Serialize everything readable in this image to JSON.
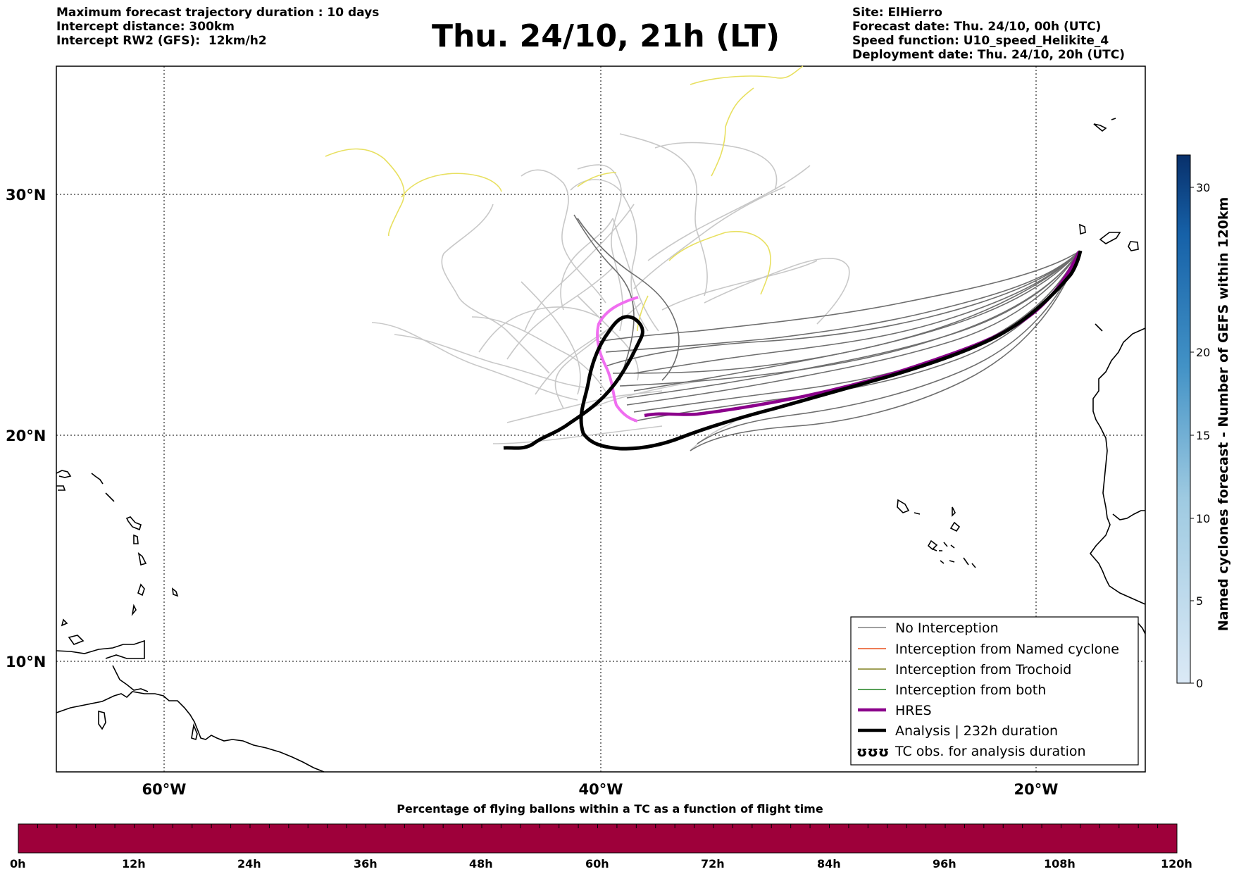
{
  "header": {
    "left_lines": [
      "Maximum forecast trajectory duration : 10 days",
      "Intercept distance: 300km",
      "Intercept RW2 (GFS):  12km/h2"
    ],
    "title": "Thu. 24/10, 21h (LT)",
    "right_lines": [
      "Site: ElHierro",
      "Forecast date: Thu. 24/10, 00h (UTC)",
      "Speed function: U10_speed_Helikite_4",
      "Deployment date: Thu. 24/10, 20h (UTC)"
    ]
  },
  "map": {
    "lat_labels": [
      "30°N",
      "20°N",
      "10°N"
    ],
    "lon_labels": [
      "60°W",
      "40°W",
      "20°W"
    ],
    "colors": {
      "gefs_no_interception": "#6e6e6e",
      "gefs_other": "#c8c8c8",
      "hres": "#8b008b",
      "analysis": "#000000",
      "pink_track": "#f06ef0",
      "yellow_track": "#e8e060"
    }
  },
  "legend": {
    "items": [
      {
        "label": "No Interception",
        "color": "#808080",
        "style": "thin"
      },
      {
        "label": "Interception from Named cyclone",
        "color": "#e8501e",
        "style": "thin"
      },
      {
        "label": "Interception from Trochoid",
        "color": "#808020",
        "style": "thin"
      },
      {
        "label": "Interception from both",
        "color": "#208020",
        "style": "thin"
      },
      {
        "label": "HRES",
        "color": "#8b008b",
        "style": "thick"
      },
      {
        "label": "Analysis | 232h duration",
        "color": "#000000",
        "style": "thick"
      },
      {
        "label": "TC obs. for analysis duration",
        "color": "#000000",
        "style": "symbol",
        "symbol": "ʊʊʊ"
      }
    ]
  },
  "colorbar_right": {
    "label": "Named cyclones forecast - Number of GEFS within 120km",
    "ticks": [
      "0",
      "5",
      "10",
      "15",
      "20",
      "30"
    ],
    "color_low": "#dbe9f6",
    "color_high": "#08306b"
  },
  "colorbar_bottom": {
    "title": "Percentage of flying ballons within a TC as a function of flight time",
    "ticks": [
      "0h",
      "12h",
      "24h",
      "36h",
      "48h",
      "60h",
      "72h",
      "84h",
      "96h",
      "108h",
      "120h"
    ],
    "color": "#9e003a"
  }
}
